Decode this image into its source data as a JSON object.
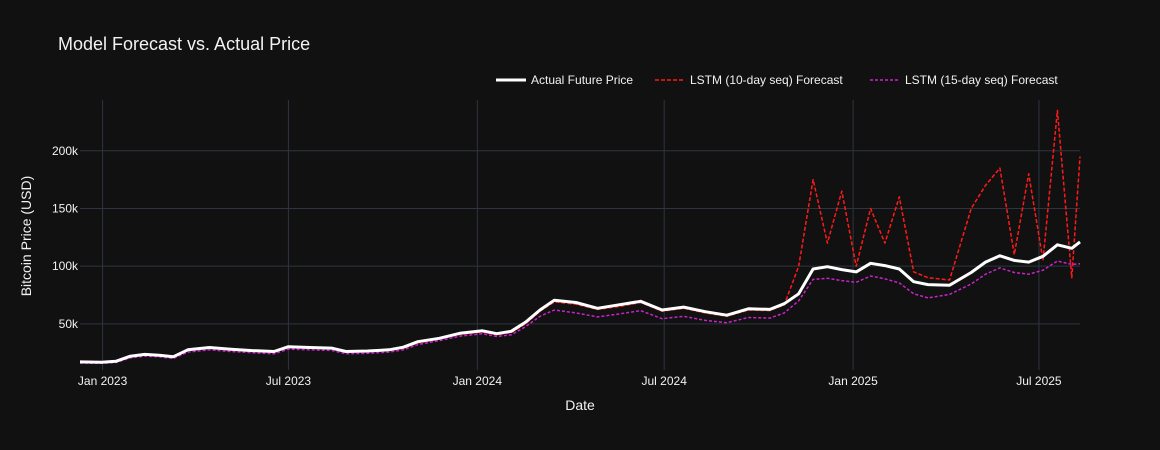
{
  "chart_data": {
    "type": "line",
    "title": "Model Forecast vs. Actual Price",
    "xlabel": "Date",
    "ylabel": "Bitcoin Price (USD)",
    "x_ticks": [
      {
        "date": "2023-01-01",
        "label": "Jan 2023"
      },
      {
        "date": "2023-07-01",
        "label": "Jul 2023"
      },
      {
        "date": "2024-01-01",
        "label": "Jan 2024"
      },
      {
        "date": "2024-07-01",
        "label": "Jul 2024"
      },
      {
        "date": "2025-01-01",
        "label": "Jan 2025"
      },
      {
        "date": "2025-07-01",
        "label": "Jul 2025"
      }
    ],
    "y_ticks": [
      {
        "value": 50000,
        "label": "50k"
      },
      {
        "value": 100000,
        "label": "100k"
      },
      {
        "value": 150000,
        "label": "150k"
      },
      {
        "value": 200000,
        "label": "200k"
      }
    ],
    "xlim": [
      "2022-12-10",
      "2025-08-10"
    ],
    "ylim": [
      10000,
      244000
    ],
    "grid": true,
    "legend_position": "top-right",
    "x": [
      "2022-12-10",
      "2022-12-31",
      "2023-01-14",
      "2023-01-28",
      "2023-02-11",
      "2023-02-25",
      "2023-03-11",
      "2023-03-25",
      "2023-04-15",
      "2023-05-06",
      "2023-05-27",
      "2023-06-17",
      "2023-07-01",
      "2023-07-22",
      "2023-08-12",
      "2023-08-26",
      "2023-09-16",
      "2023-10-07",
      "2023-10-21",
      "2023-11-04",
      "2023-11-25",
      "2023-12-16",
      "2024-01-06",
      "2024-01-20",
      "2024-02-03",
      "2024-02-17",
      "2024-03-02",
      "2024-03-16",
      "2024-04-06",
      "2024-04-27",
      "2024-05-18",
      "2024-06-08",
      "2024-06-29",
      "2024-07-20",
      "2024-08-10",
      "2024-08-31",
      "2024-09-21",
      "2024-10-12",
      "2024-10-26",
      "2024-11-09",
      "2024-11-23",
      "2024-12-07",
      "2024-12-21",
      "2025-01-04",
      "2025-01-18",
      "2025-02-01",
      "2025-02-15",
      "2025-03-01",
      "2025-03-15",
      "2025-04-05",
      "2025-04-26",
      "2025-05-10",
      "2025-05-24",
      "2025-06-07",
      "2025-06-21",
      "2025-07-05",
      "2025-07-19",
      "2025-08-02",
      "2025-08-10"
    ],
    "series": [
      {
        "name": "Actual Future Price",
        "color": "#ffffff",
        "dash": "solid",
        "values": [
          17000,
          16800,
          17500,
          22000,
          23500,
          22800,
          21500,
          27500,
          29500,
          28000,
          26800,
          26000,
          30200,
          29500,
          29000,
          26000,
          26500,
          27500,
          29800,
          34500,
          37500,
          42000,
          44000,
          41500,
          43500,
          51500,
          62000,
          70500,
          68500,
          63500,
          66500,
          69500,
          62000,
          64500,
          60500,
          57500,
          63000,
          62500,
          67500,
          76000,
          97500,
          99500,
          97000,
          95000,
          102500,
          100500,
          97500,
          86500,
          84000,
          83500,
          94500,
          103500,
          109000,
          105000,
          103500,
          108500,
          118500,
          115500,
          121000
        ]
      },
      {
        "name": "LSTM (10-day seq) Forecast",
        "color": "#ff1a1a",
        "dash": "4,2",
        "values": [
          16500,
          16400,
          17000,
          21500,
          23000,
          22300,
          21000,
          27000,
          29000,
          27500,
          26300,
          25500,
          29500,
          29000,
          28500,
          25500,
          26000,
          27000,
          29000,
          33500,
          37000,
          41000,
          43000,
          40500,
          42500,
          50000,
          61000,
          69000,
          67000,
          62500,
          65000,
          68500,
          61000,
          63500,
          59500,
          56500,
          62000,
          61500,
          66500,
          100000,
          175000,
          120000,
          165000,
          100000,
          150000,
          120000,
          160000,
          95000,
          90000,
          88000,
          150000,
          170000,
          185000,
          110000,
          180000,
          105000,
          235000,
          90000,
          195000
        ]
      },
      {
        "name": "LSTM (15-day seq) Forecast",
        "color": "#cc22cc",
        "dash": "3,2",
        "values": [
          16000,
          15800,
          16500,
          20500,
          22000,
          21500,
          20000,
          25500,
          27500,
          26000,
          25000,
          24000,
          28000,
          27500,
          27000,
          24000,
          24500,
          25500,
          27500,
          32000,
          35500,
          39500,
          41500,
          39000,
          40500,
          47500,
          56500,
          62000,
          59500,
          56000,
          58500,
          61500,
          54500,
          56500,
          53000,
          51000,
          55500,
          55000,
          59500,
          70000,
          88500,
          89500,
          87500,
          86000,
          91500,
          89000,
          85500,
          76000,
          72500,
          75500,
          84500,
          93000,
          98500,
          94500,
          93000,
          96500,
          104500,
          101500,
          102000
        ]
      }
    ]
  }
}
